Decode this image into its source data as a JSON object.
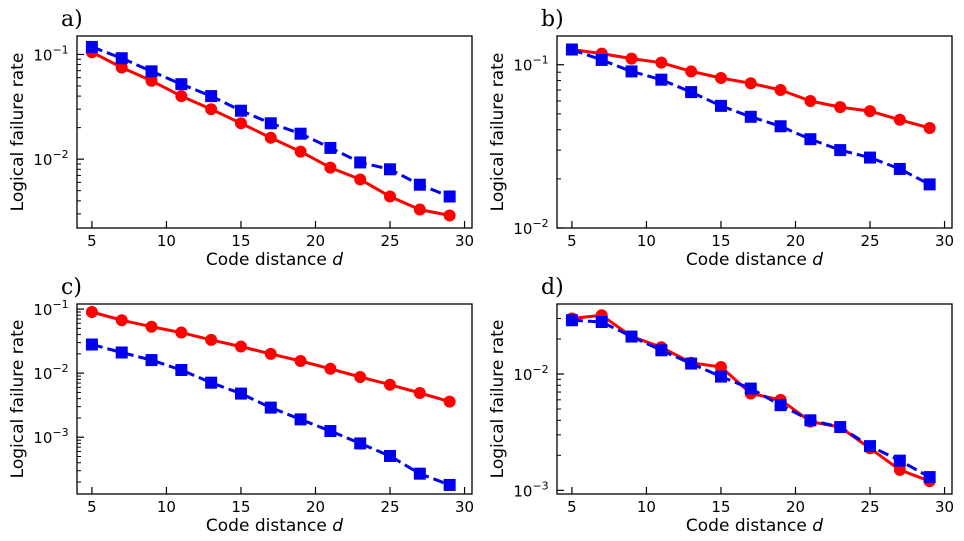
{
  "chart_data": [
    {
      "type": "line",
      "panel_label": "a)",
      "xlabel": "Code distance",
      "xlabel_var": "d",
      "ylabel": "Logical failure rate",
      "yscale": "log",
      "xlim": [
        4,
        30.5
      ],
      "ylim": [
        0.0022,
        0.15
      ],
      "xticks": [
        5,
        10,
        15,
        20,
        25,
        30
      ],
      "yticks": [
        {
          "value": 0.1,
          "base": "10",
          "exp": "−1"
        },
        {
          "value": 0.01,
          "base": "10",
          "exp": "−2"
        }
      ],
      "x": [
        5,
        7,
        9,
        11,
        13,
        15,
        17,
        19,
        21,
        23,
        25,
        27,
        29
      ],
      "series": [
        {
          "marker": "circle",
          "color": "#ff0000",
          "dash": false,
          "values": [
            0.105,
            0.075,
            0.056,
            0.04,
            0.03,
            0.022,
            0.016,
            0.0118,
            0.0083,
            0.0064,
            0.0044,
            0.0033,
            0.0029
          ]
        },
        {
          "marker": "square",
          "color": "#0000ee",
          "dash": true,
          "values": [
            0.118,
            0.092,
            0.069,
            0.052,
            0.04,
            0.029,
            0.022,
            0.0175,
            0.0128,
            0.0093,
            0.008,
            0.0057,
            0.0044
          ]
        }
      ]
    },
    {
      "type": "line",
      "panel_label": "b)",
      "xlabel": "Code distance",
      "xlabel_var": "d",
      "ylabel": "Logical failure rate",
      "yscale": "log",
      "xlim": [
        4,
        30.5
      ],
      "ylim": [
        0.01,
        0.15
      ],
      "xticks": [
        5,
        10,
        15,
        20,
        25,
        30
      ],
      "yticks": [
        {
          "value": 0.1,
          "base": "10",
          "exp": "−1"
        },
        {
          "value": 0.01,
          "base": "10",
          "exp": "−2"
        }
      ],
      "x": [
        5,
        7,
        9,
        11,
        13,
        15,
        17,
        19,
        21,
        23,
        25,
        27,
        29
      ],
      "series": [
        {
          "marker": "circle",
          "color": "#ff0000",
          "dash": false,
          "values": [
            0.124,
            0.117,
            0.109,
            0.103,
            0.091,
            0.083,
            0.077,
            0.07,
            0.06,
            0.055,
            0.052,
            0.046,
            0.041
          ]
        },
        {
          "marker": "square",
          "color": "#0000ee",
          "dash": true,
          "values": [
            0.124,
            0.107,
            0.091,
            0.081,
            0.068,
            0.056,
            0.048,
            0.042,
            0.035,
            0.03,
            0.027,
            0.023,
            0.0185
          ]
        }
      ]
    },
    {
      "type": "line",
      "panel_label": "c)",
      "xlabel": "Code distance",
      "xlabel_var": "d",
      "ylabel": "Logical failure rate",
      "yscale": "log",
      "xlim": [
        4,
        30.5
      ],
      "ylim": [
        0.00013,
        0.12
      ],
      "xticks": [
        5,
        10,
        15,
        20,
        25,
        30
      ],
      "yticks": [
        {
          "value": 0.1,
          "base": "10",
          "exp": "−1"
        },
        {
          "value": 0.01,
          "base": "10",
          "exp": "−2"
        },
        {
          "value": 0.001,
          "base": "10",
          "exp": "−3"
        }
      ],
      "x": [
        5,
        7,
        9,
        11,
        13,
        15,
        17,
        19,
        21,
        23,
        25,
        27,
        29
      ],
      "series": [
        {
          "marker": "circle",
          "color": "#ff0000",
          "dash": false,
          "values": [
            0.09,
            0.067,
            0.053,
            0.043,
            0.033,
            0.026,
            0.02,
            0.0155,
            0.0117,
            0.0087,
            0.0066,
            0.0049,
            0.0036
          ]
        },
        {
          "marker": "square",
          "color": "#0000ee",
          "dash": true,
          "values": [
            0.028,
            0.021,
            0.016,
            0.0112,
            0.0071,
            0.0048,
            0.0029,
            0.0019,
            0.00125,
            0.0008,
            0.00051,
            0.00027,
            0.00018
          ]
        }
      ]
    },
    {
      "type": "line",
      "panel_label": "d)",
      "xlabel": "Code distance",
      "xlabel_var": "d",
      "ylabel": "Logical failure rate",
      "yscale": "log",
      "xlim": [
        4,
        30.5
      ],
      "ylim": [
        0.00093,
        0.04
      ],
      "xticks": [
        5,
        10,
        15,
        20,
        25,
        30
      ],
      "yticks": [
        {
          "value": 0.01,
          "base": "10",
          "exp": "−2"
        },
        {
          "value": 0.001,
          "base": "10",
          "exp": "−3"
        }
      ],
      "x": [
        5,
        7,
        9,
        11,
        13,
        15,
        17,
        19,
        21,
        23,
        25,
        27,
        29
      ],
      "series": [
        {
          "marker": "circle",
          "color": "#ff0000",
          "dash": false,
          "values": [
            0.03,
            0.032,
            0.021,
            0.017,
            0.0125,
            0.0115,
            0.0068,
            0.006,
            0.0039,
            0.0035,
            0.0023,
            0.0015,
            0.0012
          ]
        },
        {
          "marker": "square",
          "color": "#0000ee",
          "dash": true,
          "values": [
            0.029,
            0.028,
            0.021,
            0.016,
            0.0123,
            0.0095,
            0.0075,
            0.0054,
            0.004,
            0.0035,
            0.0024,
            0.0018,
            0.0013
          ]
        }
      ]
    }
  ]
}
